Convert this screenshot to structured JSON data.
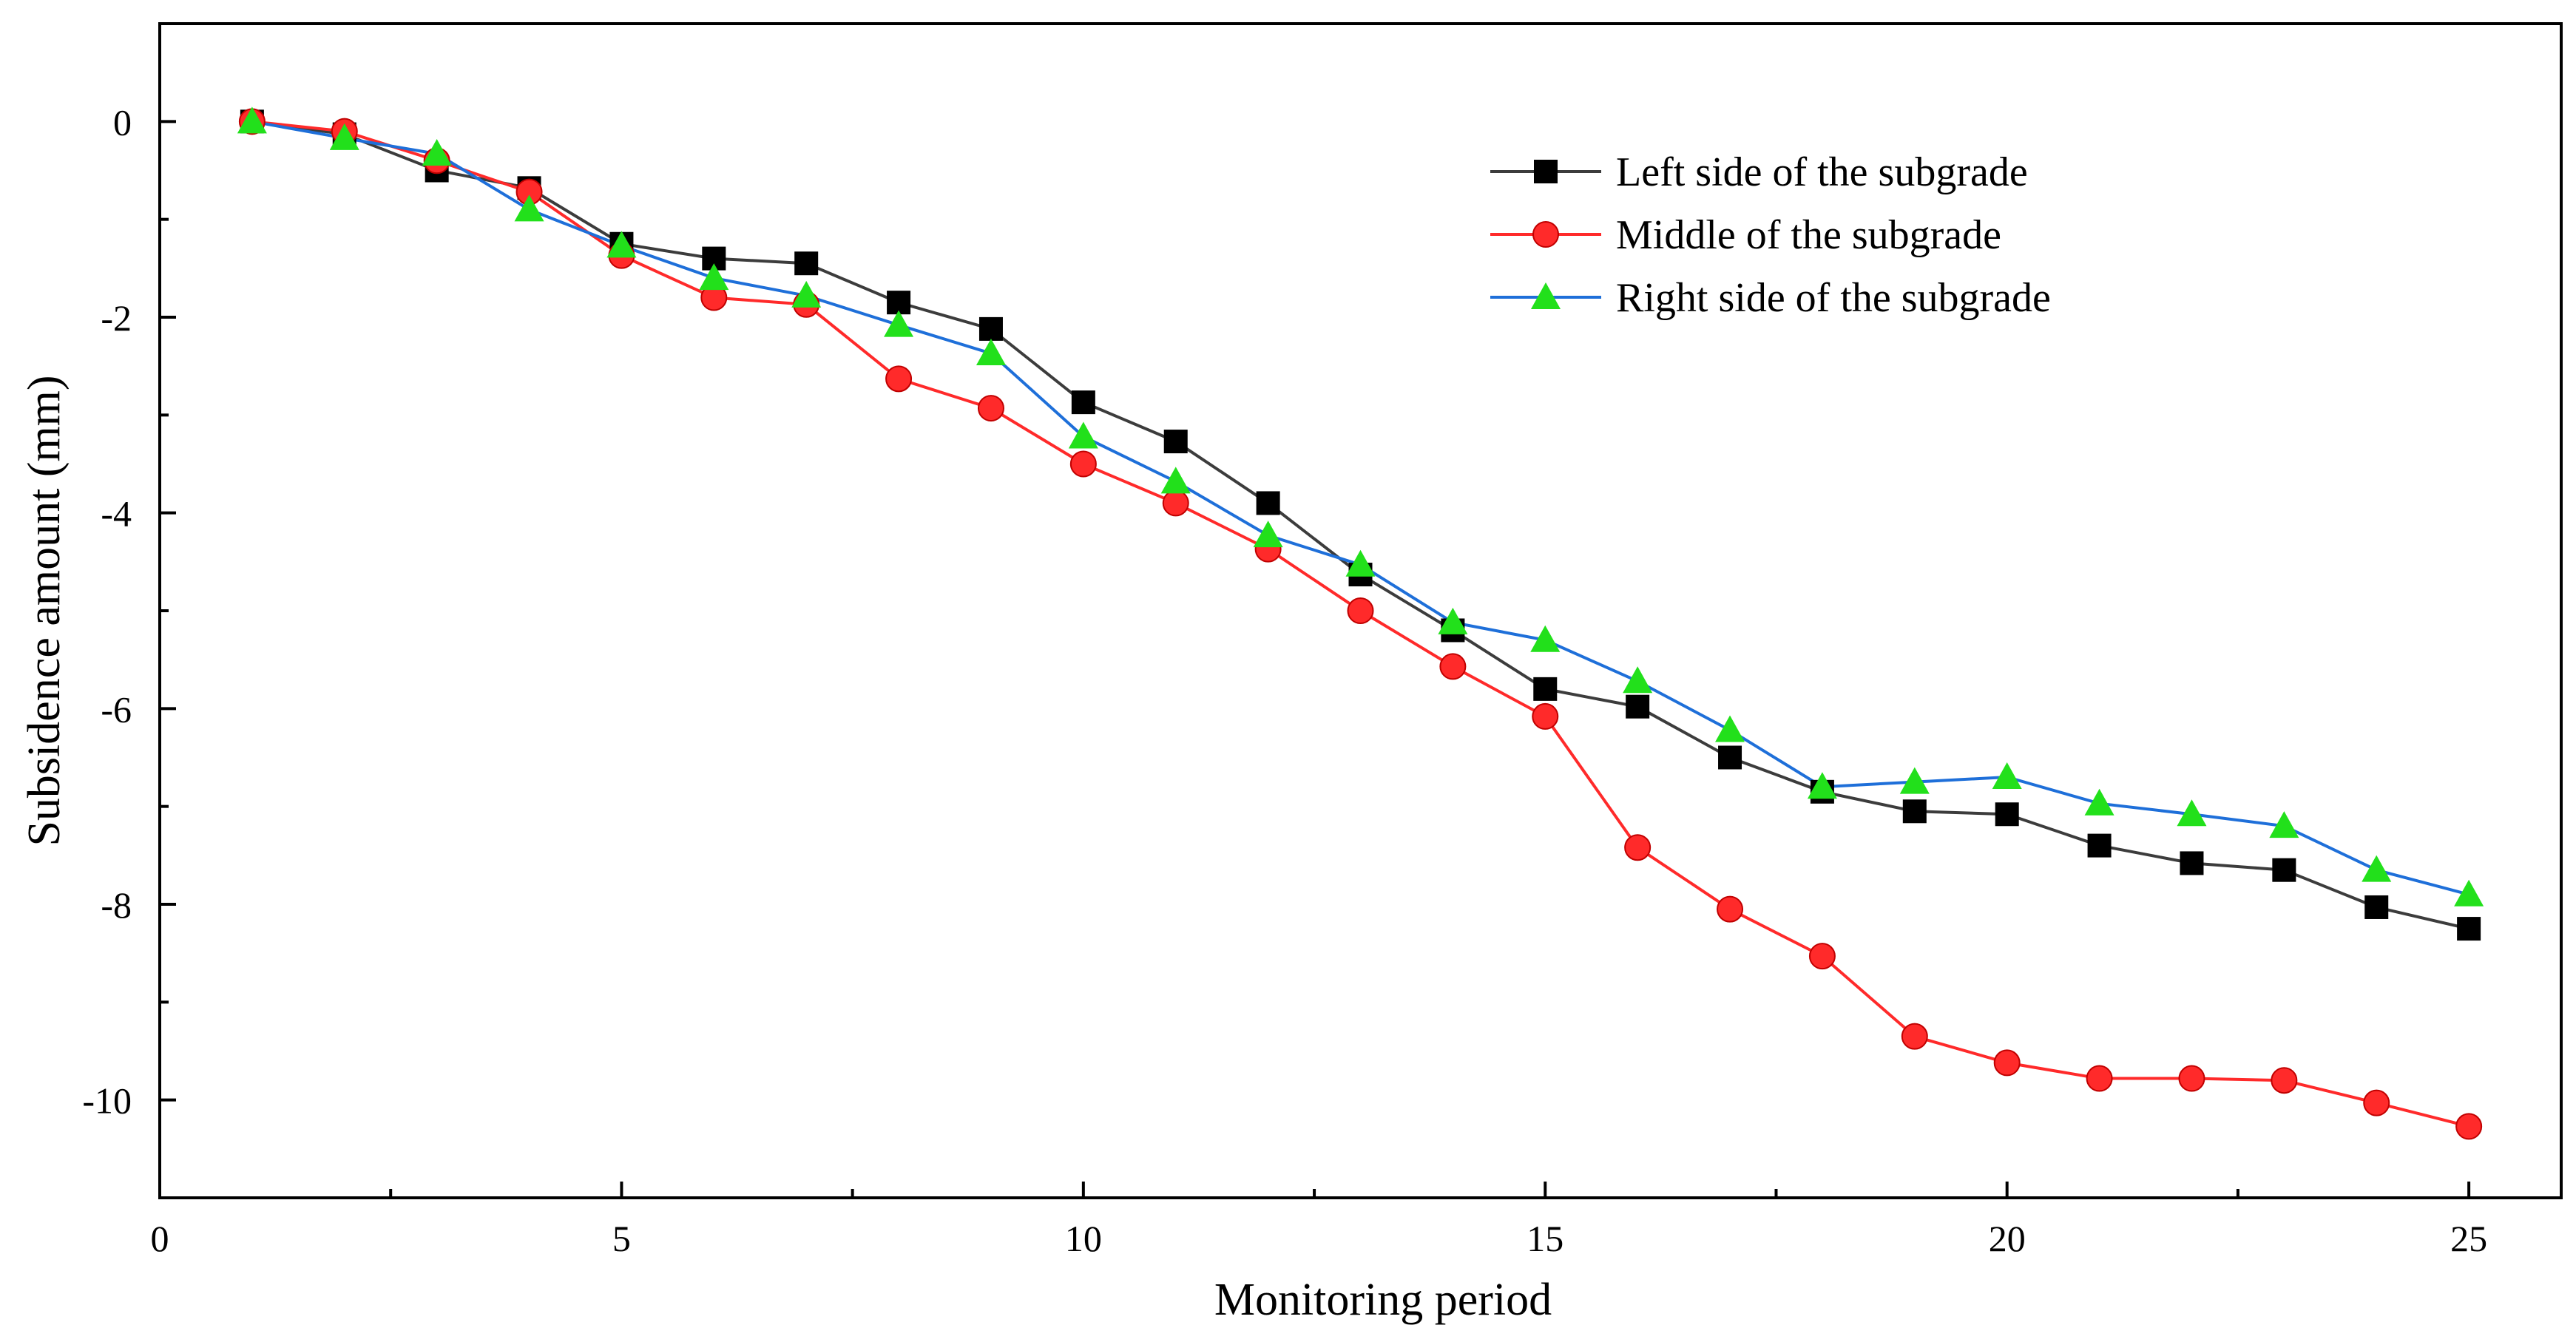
{
  "chart_data": {
    "type": "line",
    "title": "",
    "xlabel": "Monitoring period",
    "ylabel": "Subsidence amount (mm)",
    "xlim": [
      0,
      26
    ],
    "ylim": [
      -11,
      1
    ],
    "x_ticks": [
      0,
      5,
      10,
      15,
      20,
      25
    ],
    "y_ticks": [
      0,
      -2,
      -4,
      -6,
      -8,
      -10
    ],
    "x_tick_labels": [
      "0",
      "5",
      "10",
      "15",
      "20",
      "25"
    ],
    "y_tick_labels": [
      "0",
      "-2",
      "-4",
      "-6",
      "-8",
      "-10"
    ],
    "grid": false,
    "legend_position": "top-right",
    "x": [
      1,
      2,
      3,
      4,
      5,
      6,
      7,
      8,
      9,
      10,
      11,
      12,
      13,
      14,
      15,
      16,
      17,
      18,
      19,
      20,
      21,
      22,
      23,
      24,
      25
    ],
    "series": [
      {
        "name": "Left side of the subgrade",
        "color": "#3c3c3c",
        "marker_color": "#000000",
        "marker": "square",
        "values": [
          0,
          -0.13,
          -0.5,
          -0.68,
          -1.25,
          -1.4,
          -1.45,
          -1.85,
          -2.12,
          -2.87,
          -3.27,
          -3.9,
          -4.63,
          -5.2,
          -5.8,
          -5.98,
          -6.5,
          -6.85,
          -7.05,
          -7.08,
          -7.4,
          -7.58,
          -7.65,
          -8.03,
          -8.25
        ]
      },
      {
        "name": "Middle of the subgrade",
        "color": "#ff2a2a",
        "marker_color": "#ff2a2a",
        "marker": "circle",
        "values": [
          0,
          -0.1,
          -0.4,
          -0.72,
          -1.37,
          -1.8,
          -1.87,
          -2.63,
          -2.93,
          -3.5,
          -3.9,
          -4.37,
          -5.0,
          -5.57,
          -6.08,
          -7.42,
          -8.05,
          -8.53,
          -9.35,
          -9.62,
          -9.78,
          -9.78,
          -9.8,
          -10.03,
          -10.27
        ]
      },
      {
        "name": "Right side of the subgrade",
        "color": "#1e6fd9",
        "marker_color": "#22e01b",
        "marker": "triangle",
        "values": [
          0,
          -0.17,
          -0.33,
          -0.9,
          -1.27,
          -1.6,
          -1.78,
          -2.08,
          -2.37,
          -3.22,
          -3.68,
          -4.23,
          -4.53,
          -5.12,
          -5.3,
          -5.72,
          -6.22,
          -6.8,
          -6.75,
          -6.7,
          -6.97,
          -7.08,
          -7.2,
          -7.65,
          -7.9
        ]
      }
    ]
  }
}
